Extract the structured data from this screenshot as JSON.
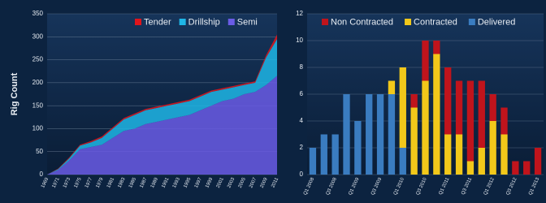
{
  "chart_data": [
    {
      "type": "stacked-area",
      "y_label": "Rig Count",
      "categories": [
        "1969",
        "1971",
        "1973",
        "1975",
        "1977",
        "1979",
        "1981",
        "1983",
        "1985",
        "1987",
        "1989",
        "1991",
        "1993",
        "1995",
        "1997",
        "1999",
        "2001",
        "2003",
        "2005",
        "2007",
        "2009",
        "2011"
      ],
      "series": [
        {
          "name": "Semi",
          "color": "#6a5ce6",
          "values": [
            0,
            10,
            30,
            55,
            60,
            65,
            80,
            95,
            100,
            110,
            115,
            120,
            125,
            130,
            140,
            150,
            160,
            165,
            175,
            180,
            195,
            215
          ]
        },
        {
          "name": "Drillship",
          "color": "#1fb6e6",
          "values": [
            0,
            2,
            5,
            8,
            10,
            15,
            20,
            25,
            30,
            30,
            30,
            30,
            30,
            30,
            30,
            30,
            25,
            25,
            20,
            20,
            60,
            80
          ]
        },
        {
          "name": "Tender",
          "color": "#e0151c",
          "values": [
            0,
            1,
            2,
            2,
            3,
            3,
            3,
            3,
            3,
            3,
            3,
            3,
            3,
            3,
            3,
            3,
            3,
            3,
            3,
            3,
            5,
            10
          ]
        }
      ],
      "legend_order": [
        "Tender",
        "Drillship",
        "Semi"
      ],
      "ylim": [
        0,
        350
      ],
      "yticks": [
        0,
        50,
        100,
        150,
        200,
        250,
        300,
        350
      ],
      "grid": true
    },
    {
      "type": "stacked-bar",
      "categories": [
        "Q1 2008",
        null,
        "Q3 2008",
        null,
        "Q1 2009",
        null,
        "Q3 2009",
        null,
        "Q1 2010",
        null,
        "Q3 2010",
        null,
        "Q1 2011",
        null,
        "Q3 2011",
        null,
        "Q1 2012",
        null,
        "Q3 2012",
        null,
        "Q1 2013"
      ],
      "series": [
        {
          "name": "Delivered",
          "color": "#3a7cc0",
          "values": [
            2,
            3,
            3,
            6,
            4,
            6,
            6,
            6,
            2,
            0,
            0,
            0,
            0,
            0,
            0,
            0,
            0,
            0,
            0,
            0,
            0
          ]
        },
        {
          "name": "Contracted",
          "color": "#f2c81a",
          "values": [
            0,
            0,
            0,
            0,
            0,
            0,
            0,
            1,
            6,
            5,
            7,
            9,
            3,
            3,
            1,
            2,
            4,
            3,
            0,
            0,
            0
          ]
        },
        {
          "name": "Non Contracted",
          "color": "#c0141c",
          "values": [
            0,
            0,
            0,
            0,
            0,
            0,
            0,
            0,
            0,
            1,
            3,
            1,
            5,
            4,
            6,
            5,
            2,
            2,
            1,
            1,
            2
          ]
        }
      ],
      "legend_order": [
        "Non Contracted",
        "Contracted",
        "Delivered"
      ],
      "ylim": [
        0,
        12
      ],
      "yticks": [
        0,
        2,
        4,
        6,
        8,
        10,
        12
      ],
      "grid": true
    }
  ]
}
